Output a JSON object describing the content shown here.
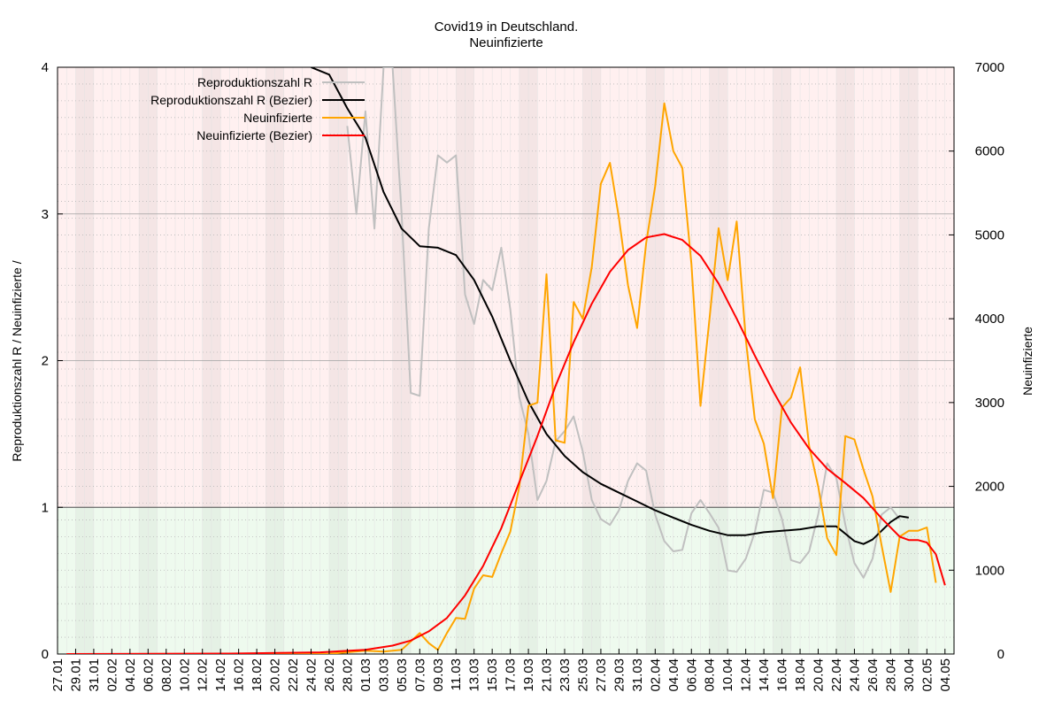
{
  "chart_data": {
    "type": "line",
    "title": "Covid19 in Deutschland.",
    "subtitle": "Neuinfizierte",
    "ylabel_left": "Reproduktionszahl R / Neuinfizierte /",
    "ylabel_right": "Neuinfizierte",
    "ylim_left": [
      0,
      4
    ],
    "ylim_right": [
      0,
      7000
    ],
    "yticks_left": [
      0,
      1,
      2,
      3,
      4
    ],
    "yticks_right": [
      0,
      1000,
      2000,
      3000,
      4000,
      5000,
      6000,
      7000
    ],
    "xlim": [
      "2020-01-27",
      "2020-05-05"
    ],
    "xtick_labels": [
      "27.01",
      "29.01",
      "31.01",
      "02.02",
      "04.02",
      "06.02",
      "08.02",
      "10.02",
      "12.02",
      "14.02",
      "16.02",
      "18.02",
      "20.02",
      "22.02",
      "24.02",
      "26.02",
      "28.02",
      "01.03",
      "03.03",
      "05.03",
      "07.03",
      "09.03",
      "11.03",
      "13.03",
      "15.03",
      "17.03",
      "19.03",
      "21.03",
      "23.03",
      "25.03",
      "27.03",
      "29.03",
      "31.03",
      "02.04",
      "04.04",
      "06.04",
      "08.04",
      "10.04",
      "12.04",
      "14.04",
      "16.04",
      "18.04",
      "20.04",
      "22.04",
      "24.04",
      "26.04",
      "28.04",
      "30.04",
      "02.05",
      "04.05"
    ],
    "reference_line_left": 1,
    "background_bands": {
      "above_1": "#fff0f0",
      "below_1": "#eefaee"
    },
    "legend_position": "top-left",
    "series": [
      {
        "name": "Reproduktionszahl R",
        "axis": "left",
        "color": "#c0c0c0",
        "points": [
          [
            "2020-02-28",
            3.6
          ],
          [
            "2020-02-29",
            3.0
          ],
          [
            "2020-03-01",
            3.7
          ],
          [
            "2020-03-02",
            2.9
          ],
          [
            "2020-03-03",
            4.0
          ],
          [
            "2020-03-04",
            4.0
          ],
          [
            "2020-03-05",
            3.0
          ],
          [
            "2020-03-06",
            1.78
          ],
          [
            "2020-03-07",
            1.76
          ],
          [
            "2020-03-08",
            2.9
          ],
          [
            "2020-03-09",
            3.4
          ],
          [
            "2020-03-10",
            3.35
          ],
          [
            "2020-03-11",
            3.4
          ],
          [
            "2020-03-12",
            2.45
          ],
          [
            "2020-03-13",
            2.25
          ],
          [
            "2020-03-14",
            2.55
          ],
          [
            "2020-03-15",
            2.48
          ],
          [
            "2020-03-16",
            2.77
          ],
          [
            "2020-03-17",
            2.35
          ],
          [
            "2020-03-18",
            1.75
          ],
          [
            "2020-03-19",
            1.5
          ],
          [
            "2020-03-20",
            1.05
          ],
          [
            "2020-03-21",
            1.18
          ],
          [
            "2020-03-22",
            1.45
          ],
          [
            "2020-03-23",
            1.52
          ],
          [
            "2020-03-24",
            1.62
          ],
          [
            "2020-03-25",
            1.38
          ],
          [
            "2020-03-26",
            1.05
          ],
          [
            "2020-03-27",
            0.92
          ],
          [
            "2020-03-28",
            0.88
          ],
          [
            "2020-03-29",
            0.98
          ],
          [
            "2020-03-30",
            1.18
          ],
          [
            "2020-03-31",
            1.3
          ],
          [
            "2020-04-01",
            1.25
          ],
          [
            "2020-04-02",
            0.95
          ],
          [
            "2020-04-03",
            0.77
          ],
          [
            "2020-04-04",
            0.7
          ],
          [
            "2020-04-05",
            0.71
          ],
          [
            "2020-04-06",
            0.96
          ],
          [
            "2020-04-07",
            1.05
          ],
          [
            "2020-04-08",
            0.96
          ],
          [
            "2020-04-09",
            0.86
          ],
          [
            "2020-04-10",
            0.57
          ],
          [
            "2020-04-11",
            0.56
          ],
          [
            "2020-04-12",
            0.65
          ],
          [
            "2020-04-13",
            0.83
          ],
          [
            "2020-04-14",
            1.12
          ],
          [
            "2020-04-15",
            1.1
          ],
          [
            "2020-04-16",
            0.92
          ],
          [
            "2020-04-17",
            0.64
          ],
          [
            "2020-04-18",
            0.62
          ],
          [
            "2020-04-19",
            0.7
          ],
          [
            "2020-04-20",
            0.95
          ],
          [
            "2020-04-21",
            1.3
          ],
          [
            "2020-04-22",
            1.2
          ],
          [
            "2020-04-23",
            0.88
          ],
          [
            "2020-04-24",
            0.62
          ],
          [
            "2020-04-25",
            0.52
          ],
          [
            "2020-04-26",
            0.65
          ],
          [
            "2020-04-27",
            0.95
          ],
          [
            "2020-04-28",
            1.0
          ],
          [
            "2020-04-29",
            0.92
          ]
        ]
      },
      {
        "name": "Reproduktionszahl R (Bezier)",
        "axis": "left",
        "color": "#000000",
        "points": [
          [
            "2020-02-24",
            4.0
          ],
          [
            "2020-02-26",
            3.95
          ],
          [
            "2020-02-28",
            3.72
          ],
          [
            "2020-03-01",
            3.52
          ],
          [
            "2020-03-03",
            3.15
          ],
          [
            "2020-03-05",
            2.9
          ],
          [
            "2020-03-07",
            2.78
          ],
          [
            "2020-03-09",
            2.77
          ],
          [
            "2020-03-11",
            2.72
          ],
          [
            "2020-03-13",
            2.55
          ],
          [
            "2020-03-15",
            2.3
          ],
          [
            "2020-03-17",
            2.0
          ],
          [
            "2020-03-19",
            1.72
          ],
          [
            "2020-03-21",
            1.5
          ],
          [
            "2020-03-23",
            1.35
          ],
          [
            "2020-03-25",
            1.24
          ],
          [
            "2020-03-27",
            1.16
          ],
          [
            "2020-03-29",
            1.1
          ],
          [
            "2020-03-31",
            1.04
          ],
          [
            "2020-04-02",
            0.98
          ],
          [
            "2020-04-04",
            0.93
          ],
          [
            "2020-04-06",
            0.88
          ],
          [
            "2020-04-08",
            0.84
          ],
          [
            "2020-04-10",
            0.81
          ],
          [
            "2020-04-12",
            0.81
          ],
          [
            "2020-04-14",
            0.83
          ],
          [
            "2020-04-16",
            0.84
          ],
          [
            "2020-04-18",
            0.85
          ],
          [
            "2020-04-20",
            0.87
          ],
          [
            "2020-04-22",
            0.87
          ],
          [
            "2020-04-24",
            0.77
          ],
          [
            "2020-04-25",
            0.75
          ],
          [
            "2020-04-26",
            0.78
          ],
          [
            "2020-04-28",
            0.9
          ],
          [
            "2020-04-29",
            0.94
          ],
          [
            "2020-04-30",
            0.93
          ]
        ]
      },
      {
        "name": "Neuinfizierte",
        "axis": "right",
        "color": "#ffa500",
        "points": [
          [
            "2020-01-28",
            0
          ],
          [
            "2020-02-26",
            2
          ],
          [
            "2020-03-01",
            40
          ],
          [
            "2020-03-03",
            30
          ],
          [
            "2020-03-05",
            50
          ],
          [
            "2020-03-06",
            150
          ],
          [
            "2020-03-07",
            250
          ],
          [
            "2020-03-08",
            130
          ],
          [
            "2020-03-09",
            50
          ],
          [
            "2020-03-10",
            250
          ],
          [
            "2020-03-11",
            430
          ],
          [
            "2020-03-12",
            420
          ],
          [
            "2020-03-13",
            780
          ],
          [
            "2020-03-14",
            940
          ],
          [
            "2020-03-15",
            920
          ],
          [
            "2020-03-16",
            1200
          ],
          [
            "2020-03-17",
            1460
          ],
          [
            "2020-03-18",
            2000
          ],
          [
            "2020-03-19",
            2960
          ],
          [
            "2020-03-20",
            3000
          ],
          [
            "2020-03-21",
            4530
          ],
          [
            "2020-03-22",
            2550
          ],
          [
            "2020-03-23",
            2520
          ],
          [
            "2020-03-24",
            4200
          ],
          [
            "2020-03-25",
            4000
          ],
          [
            "2020-03-26",
            4620
          ],
          [
            "2020-03-27",
            5610
          ],
          [
            "2020-03-28",
            5860
          ],
          [
            "2020-03-29",
            5200
          ],
          [
            "2020-03-30",
            4400
          ],
          [
            "2020-03-31",
            3890
          ],
          [
            "2020-04-01",
            4900
          ],
          [
            "2020-04-02",
            5580
          ],
          [
            "2020-04-03",
            6570
          ],
          [
            "2020-04-04",
            6000
          ],
          [
            "2020-04-05",
            5800
          ],
          [
            "2020-04-06",
            4650
          ],
          [
            "2020-04-07",
            2960
          ],
          [
            "2020-04-08",
            4000
          ],
          [
            "2020-04-09",
            5080
          ],
          [
            "2020-04-10",
            4460
          ],
          [
            "2020-04-11",
            5160
          ],
          [
            "2020-04-12",
            3750
          ],
          [
            "2020-04-13",
            2800
          ],
          [
            "2020-04-14",
            2510
          ],
          [
            "2020-04-15",
            1860
          ],
          [
            "2020-04-16",
            2940
          ],
          [
            "2020-04-17",
            3060
          ],
          [
            "2020-04-18",
            3420
          ],
          [
            "2020-04-19",
            2480
          ],
          [
            "2020-04-20",
            2000
          ],
          [
            "2020-04-21",
            1380
          ],
          [
            "2020-04-22",
            1180
          ],
          [
            "2020-04-23",
            2600
          ],
          [
            "2020-04-24",
            2560
          ],
          [
            "2020-04-25",
            2200
          ],
          [
            "2020-04-26",
            1880
          ],
          [
            "2020-04-27",
            1300
          ],
          [
            "2020-04-28",
            740
          ],
          [
            "2020-04-29",
            1400
          ],
          [
            "2020-04-30",
            1470
          ],
          [
            "2020-05-01",
            1470
          ],
          [
            "2020-05-02",
            1510
          ],
          [
            "2020-05-03",
            850
          ]
        ]
      },
      {
        "name": "Neuinfizierte (Bezier)",
        "axis": "right",
        "color": "#ff0000",
        "points": [
          [
            "2020-01-28",
            0
          ],
          [
            "2020-02-15",
            5
          ],
          [
            "2020-02-25",
            20
          ],
          [
            "2020-03-01",
            50
          ],
          [
            "2020-03-04",
            100
          ],
          [
            "2020-03-06",
            160
          ],
          [
            "2020-03-08",
            270
          ],
          [
            "2020-03-10",
            430
          ],
          [
            "2020-03-12",
            700
          ],
          [
            "2020-03-14",
            1050
          ],
          [
            "2020-03-16",
            1500
          ],
          [
            "2020-03-18",
            2050
          ],
          [
            "2020-03-20",
            2600
          ],
          [
            "2020-03-22",
            3200
          ],
          [
            "2020-03-24",
            3720
          ],
          [
            "2020-03-26",
            4180
          ],
          [
            "2020-03-28",
            4560
          ],
          [
            "2020-03-30",
            4820
          ],
          [
            "2020-04-01",
            4970
          ],
          [
            "2020-04-03",
            5010
          ],
          [
            "2020-04-05",
            4940
          ],
          [
            "2020-04-07",
            4750
          ],
          [
            "2020-04-09",
            4420
          ],
          [
            "2020-04-11",
            4000
          ],
          [
            "2020-04-13",
            3560
          ],
          [
            "2020-04-15",
            3140
          ],
          [
            "2020-04-17",
            2760
          ],
          [
            "2020-04-19",
            2450
          ],
          [
            "2020-04-21",
            2210
          ],
          [
            "2020-04-23",
            2040
          ],
          [
            "2020-04-25",
            1860
          ],
          [
            "2020-04-27",
            1620
          ],
          [
            "2020-04-29",
            1400
          ],
          [
            "2020-04-30",
            1360
          ],
          [
            "2020-05-01",
            1360
          ],
          [
            "2020-05-02",
            1330
          ],
          [
            "2020-05-03",
            1190
          ],
          [
            "2020-05-04",
            820
          ]
        ]
      }
    ]
  }
}
